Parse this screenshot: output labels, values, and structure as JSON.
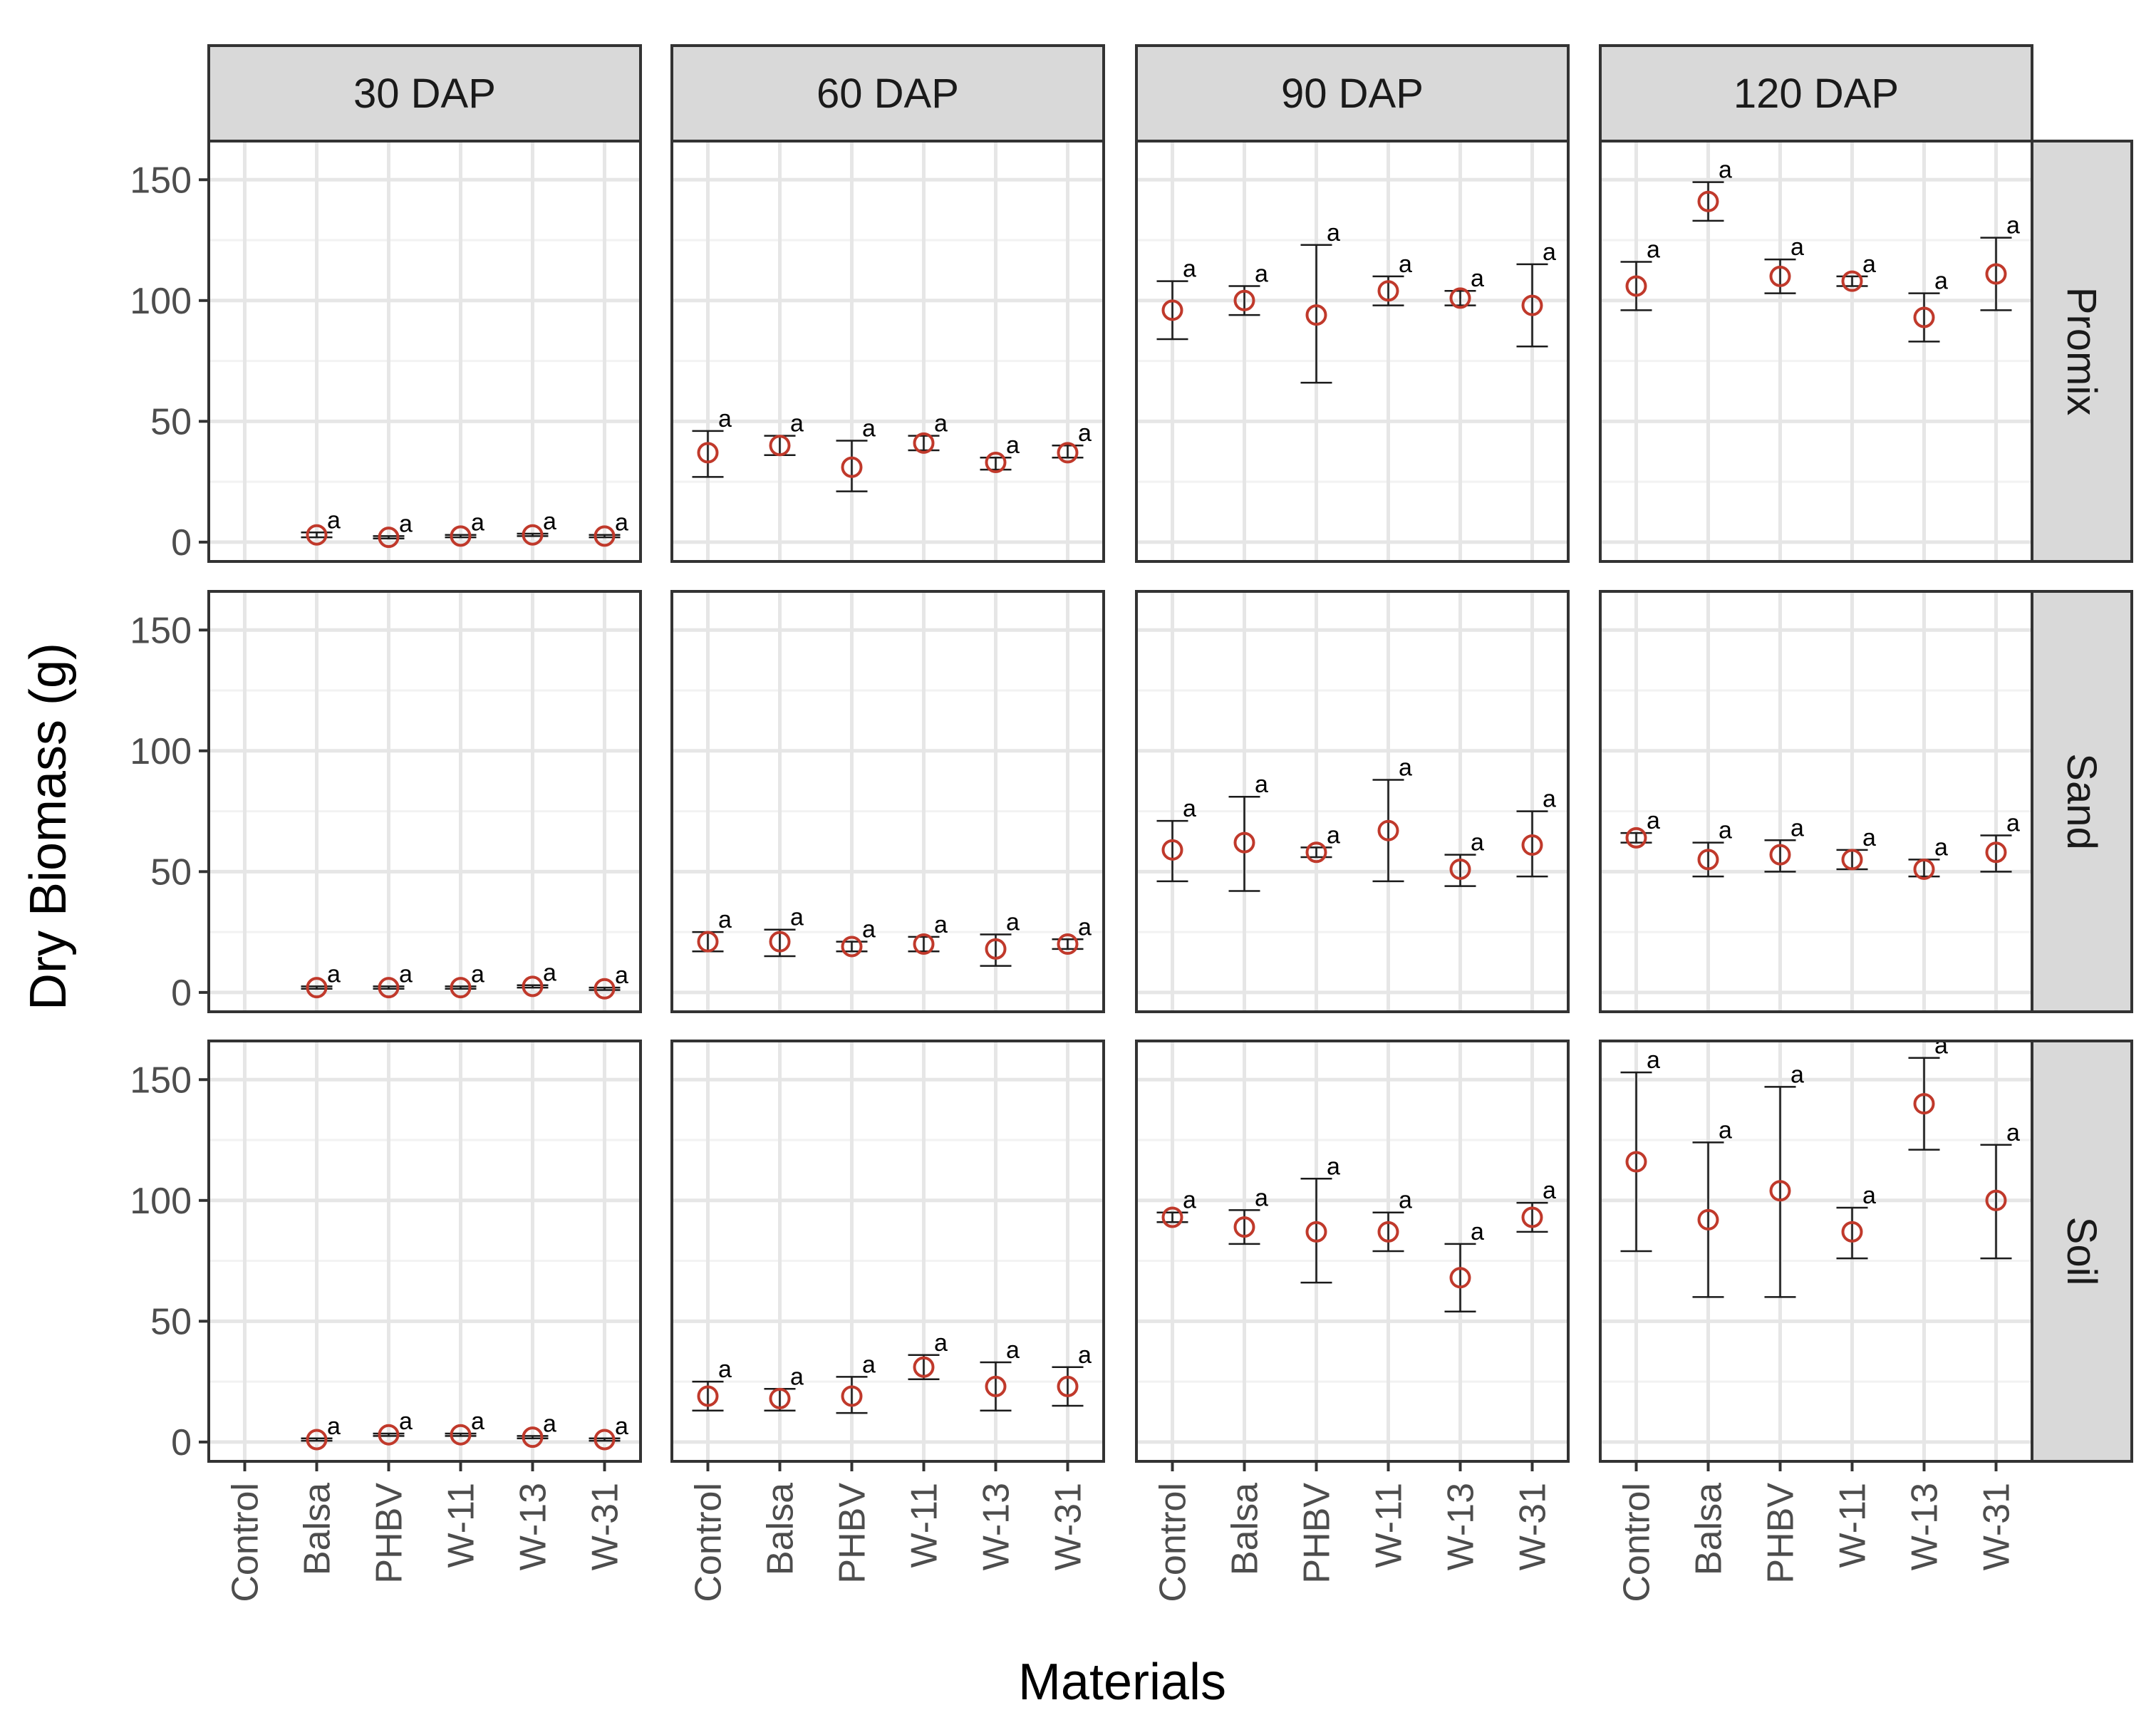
{
  "chart_data": {
    "type": "scatter",
    "title": "",
    "xlabel": "Materials",
    "ylabel": "Dry Biomass (g)",
    "categories": [
      "Control",
      "Balsa",
      "PHBV",
      "W-11",
      "W-13",
      "W-31"
    ],
    "ylim": [
      -8,
      166
    ],
    "yticks": [
      0,
      50,
      100,
      150
    ],
    "columns": [
      "30 DAP",
      "60 DAP",
      "90 DAP",
      "120 DAP"
    ],
    "rows": [
      "Promix",
      "Sand",
      "Soil"
    ],
    "grid": true,
    "colors": {
      "point": "#c0392b",
      "errorbar": "#1a1a1a",
      "strip": "#d9d9d9",
      "grid_major": "#e6e6e6",
      "grid_minor": "#f2f2f2",
      "panel_border": "#333333"
    },
    "panels": [
      {
        "row": "Promix",
        "col": "30 DAP",
        "points": [
          {
            "x": "Balsa",
            "y": 3,
            "lo": 2,
            "hi": 4,
            "sig": "a"
          },
          {
            "x": "PHBV",
            "y": 2,
            "lo": 1.5,
            "hi": 2.5,
            "sig": "a"
          },
          {
            "x": "W-11",
            "y": 2.5,
            "lo": 2,
            "hi": 3,
            "sig": "a"
          },
          {
            "x": "W-13",
            "y": 3,
            "lo": 2.5,
            "hi": 3.5,
            "sig": "a"
          },
          {
            "x": "W-31",
            "y": 2.5,
            "lo": 2,
            "hi": 3,
            "sig": "a"
          }
        ]
      },
      {
        "row": "Promix",
        "col": "60 DAP",
        "points": [
          {
            "x": "Control",
            "y": 37,
            "lo": 27,
            "hi": 46,
            "sig": "a"
          },
          {
            "x": "Balsa",
            "y": 40,
            "lo": 36,
            "hi": 44,
            "sig": "a"
          },
          {
            "x": "PHBV",
            "y": 31,
            "lo": 21,
            "hi": 42,
            "sig": "a"
          },
          {
            "x": "W-11",
            "y": 41,
            "lo": 38,
            "hi": 44,
            "sig": "a"
          },
          {
            "x": "W-13",
            "y": 33,
            "lo": 30,
            "hi": 35,
            "sig": "a"
          },
          {
            "x": "W-31",
            "y": 37,
            "lo": 35,
            "hi": 40,
            "sig": "a"
          }
        ]
      },
      {
        "row": "Promix",
        "col": "90 DAP",
        "points": [
          {
            "x": "Control",
            "y": 96,
            "lo": 84,
            "hi": 108,
            "sig": "a"
          },
          {
            "x": "Balsa",
            "y": 100,
            "lo": 94,
            "hi": 106,
            "sig": "a"
          },
          {
            "x": "PHBV",
            "y": 94,
            "lo": 66,
            "hi": 123,
            "sig": "a"
          },
          {
            "x": "W-11",
            "y": 104,
            "lo": 98,
            "hi": 110,
            "sig": "a"
          },
          {
            "x": "W-13",
            "y": 101,
            "lo": 98,
            "hi": 104,
            "sig": "a"
          },
          {
            "x": "W-31",
            "y": 98,
            "lo": 81,
            "hi": 115,
            "sig": "a"
          }
        ]
      },
      {
        "row": "Promix",
        "col": "120 DAP",
        "points": [
          {
            "x": "Control",
            "y": 106,
            "lo": 96,
            "hi": 116,
            "sig": "a"
          },
          {
            "x": "Balsa",
            "y": 141,
            "lo": 133,
            "hi": 149,
            "sig": "a"
          },
          {
            "x": "PHBV",
            "y": 110,
            "lo": 103,
            "hi": 117,
            "sig": "a"
          },
          {
            "x": "W-11",
            "y": 108,
            "lo": 106,
            "hi": 110,
            "sig": "a"
          },
          {
            "x": "W-13",
            "y": 93,
            "lo": 83,
            "hi": 103,
            "sig": "a"
          },
          {
            "x": "W-31",
            "y": 111,
            "lo": 96,
            "hi": 126,
            "sig": "a"
          }
        ]
      },
      {
        "row": "Sand",
        "col": "30 DAP",
        "points": [
          {
            "x": "Balsa",
            "y": 2,
            "lo": 1.5,
            "hi": 2.5,
            "sig": "a"
          },
          {
            "x": "PHBV",
            "y": 2,
            "lo": 1.5,
            "hi": 2.5,
            "sig": "a"
          },
          {
            "x": "W-11",
            "y": 2,
            "lo": 1.5,
            "hi": 2.5,
            "sig": "a"
          },
          {
            "x": "W-13",
            "y": 2.5,
            "lo": 2,
            "hi": 3,
            "sig": "a"
          },
          {
            "x": "W-31",
            "y": 1.5,
            "lo": 1,
            "hi": 2,
            "sig": "a"
          }
        ]
      },
      {
        "row": "Sand",
        "col": "60 DAP",
        "points": [
          {
            "x": "Control",
            "y": 21,
            "lo": 17,
            "hi": 25,
            "sig": "a"
          },
          {
            "x": "Balsa",
            "y": 21,
            "lo": 15,
            "hi": 26,
            "sig": "a"
          },
          {
            "x": "PHBV",
            "y": 19,
            "lo": 17,
            "hi": 21,
            "sig": "a"
          },
          {
            "x": "W-11",
            "y": 20,
            "lo": 17,
            "hi": 23,
            "sig": "a"
          },
          {
            "x": "W-13",
            "y": 18,
            "lo": 11,
            "hi": 24,
            "sig": "a"
          },
          {
            "x": "W-31",
            "y": 20,
            "lo": 18,
            "hi": 22,
            "sig": "a"
          }
        ]
      },
      {
        "row": "Sand",
        "col": "90 DAP",
        "points": [
          {
            "x": "Control",
            "y": 59,
            "lo": 46,
            "hi": 71,
            "sig": "a"
          },
          {
            "x": "Balsa",
            "y": 62,
            "lo": 42,
            "hi": 81,
            "sig": "a"
          },
          {
            "x": "PHBV",
            "y": 58,
            "lo": 56,
            "hi": 60,
            "sig": "a"
          },
          {
            "x": "W-11",
            "y": 67,
            "lo": 46,
            "hi": 88,
            "sig": "a"
          },
          {
            "x": "W-13",
            "y": 51,
            "lo": 44,
            "hi": 57,
            "sig": "a"
          },
          {
            "x": "W-31",
            "y": 61,
            "lo": 48,
            "hi": 75,
            "sig": "a"
          }
        ]
      },
      {
        "row": "Sand",
        "col": "120 DAP",
        "points": [
          {
            "x": "Control",
            "y": 64,
            "lo": 62,
            "hi": 66,
            "sig": "a"
          },
          {
            "x": "Balsa",
            "y": 55,
            "lo": 48,
            "hi": 62,
            "sig": "a"
          },
          {
            "x": "PHBV",
            "y": 57,
            "lo": 50,
            "hi": 63,
            "sig": "a"
          },
          {
            "x": "W-11",
            "y": 55,
            "lo": 51,
            "hi": 59,
            "sig": "a"
          },
          {
            "x": "W-13",
            "y": 51,
            "lo": 48,
            "hi": 55,
            "sig": "a"
          },
          {
            "x": "W-31",
            "y": 58,
            "lo": 50,
            "hi": 65,
            "sig": "a"
          }
        ]
      },
      {
        "row": "Soil",
        "col": "30 DAP",
        "points": [
          {
            "x": "Balsa",
            "y": 1,
            "lo": 0.5,
            "hi": 1.5,
            "sig": "a"
          },
          {
            "x": "PHBV",
            "y": 3,
            "lo": 2.5,
            "hi": 3.5,
            "sig": "a"
          },
          {
            "x": "W-11",
            "y": 3,
            "lo": 2.5,
            "hi": 3.5,
            "sig": "a"
          },
          {
            "x": "W-13",
            "y": 2,
            "lo": 1.5,
            "hi": 2.5,
            "sig": "a"
          },
          {
            "x": "W-31",
            "y": 1,
            "lo": 0.5,
            "hi": 1.5,
            "sig": "a"
          }
        ]
      },
      {
        "row": "Soil",
        "col": "60 DAP",
        "points": [
          {
            "x": "Control",
            "y": 19,
            "lo": 13,
            "hi": 25,
            "sig": "a"
          },
          {
            "x": "Balsa",
            "y": 18,
            "lo": 13,
            "hi": 22,
            "sig": "a"
          },
          {
            "x": "PHBV",
            "y": 19,
            "lo": 12,
            "hi": 27,
            "sig": "a"
          },
          {
            "x": "W-11",
            "y": 31,
            "lo": 26,
            "hi": 36,
            "sig": "a"
          },
          {
            "x": "W-13",
            "y": 23,
            "lo": 13,
            "hi": 33,
            "sig": "a"
          },
          {
            "x": "W-31",
            "y": 23,
            "lo": 15,
            "hi": 31,
            "sig": "a"
          }
        ]
      },
      {
        "row": "Soil",
        "col": "90 DAP",
        "points": [
          {
            "x": "Control",
            "y": 93,
            "lo": 91,
            "hi": 95,
            "sig": "a"
          },
          {
            "x": "Balsa",
            "y": 89,
            "lo": 82,
            "hi": 96,
            "sig": "a"
          },
          {
            "x": "PHBV",
            "y": 87,
            "lo": 66,
            "hi": 109,
            "sig": "a"
          },
          {
            "x": "W-11",
            "y": 87,
            "lo": 79,
            "hi": 95,
            "sig": "a"
          },
          {
            "x": "W-13",
            "y": 68,
            "lo": 54,
            "hi": 82,
            "sig": "a"
          },
          {
            "x": "W-31",
            "y": 93,
            "lo": 87,
            "hi": 99,
            "sig": "a"
          }
        ]
      },
      {
        "row": "Soil",
        "col": "120 DAP",
        "points": [
          {
            "x": "Control",
            "y": 116,
            "lo": 79,
            "hi": 153,
            "sig": "a"
          },
          {
            "x": "Balsa",
            "y": 92,
            "lo": 60,
            "hi": 124,
            "sig": "a"
          },
          {
            "x": "PHBV",
            "y": 104,
            "lo": 60,
            "hi": 147,
            "sig": "a"
          },
          {
            "x": "W-11",
            "y": 87,
            "lo": 76,
            "hi": 97,
            "sig": "a"
          },
          {
            "x": "W-13",
            "y": 140,
            "lo": 121,
            "hi": 159,
            "sig": "a"
          },
          {
            "x": "W-31",
            "y": 100,
            "lo": 76,
            "hi": 123,
            "sig": "a"
          }
        ]
      }
    ]
  }
}
